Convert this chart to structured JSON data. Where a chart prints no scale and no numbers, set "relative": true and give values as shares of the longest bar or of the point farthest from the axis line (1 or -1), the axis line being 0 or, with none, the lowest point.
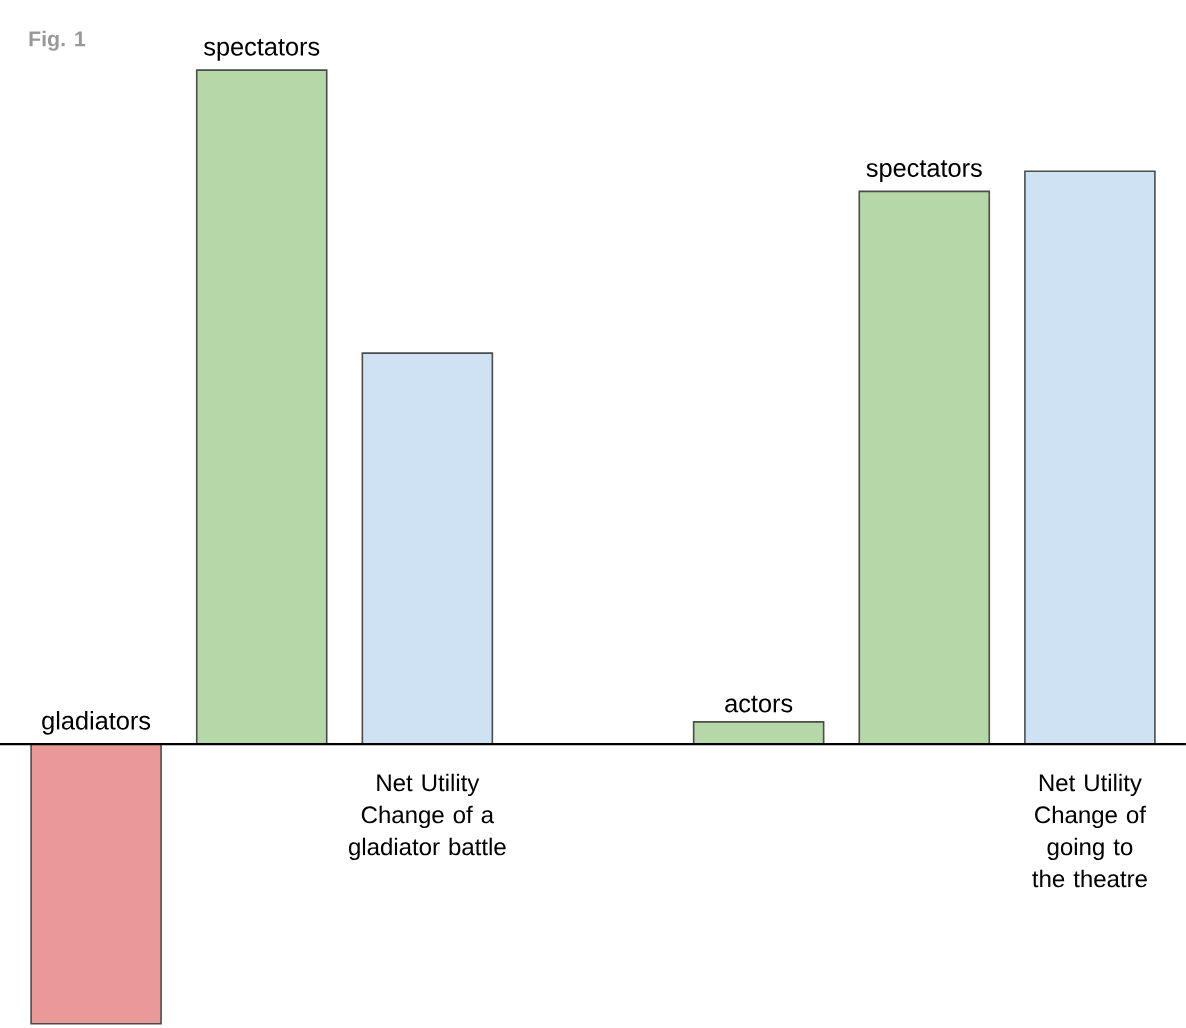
{
  "chart_data": {
    "type": "bar",
    "title": "Fig. 1",
    "relative": true,
    "categories": [
      "gladiators",
      "spectators",
      "Net Utility Change of a gladiator battle",
      null,
      "actors",
      "spectators",
      "Net Utility Change of going to the theatre"
    ],
    "values": [
      -0.415,
      1,
      0.58,
      null,
      0.033,
      0.82,
      0.85
    ],
    "colors": [
      "#ea9999",
      "#b6d7a8",
      "#cfe2f3",
      null,
      "#b6d7a8",
      "#b6d7a8",
      "#cfe2f3"
    ],
    "marker": "none"
  }
}
